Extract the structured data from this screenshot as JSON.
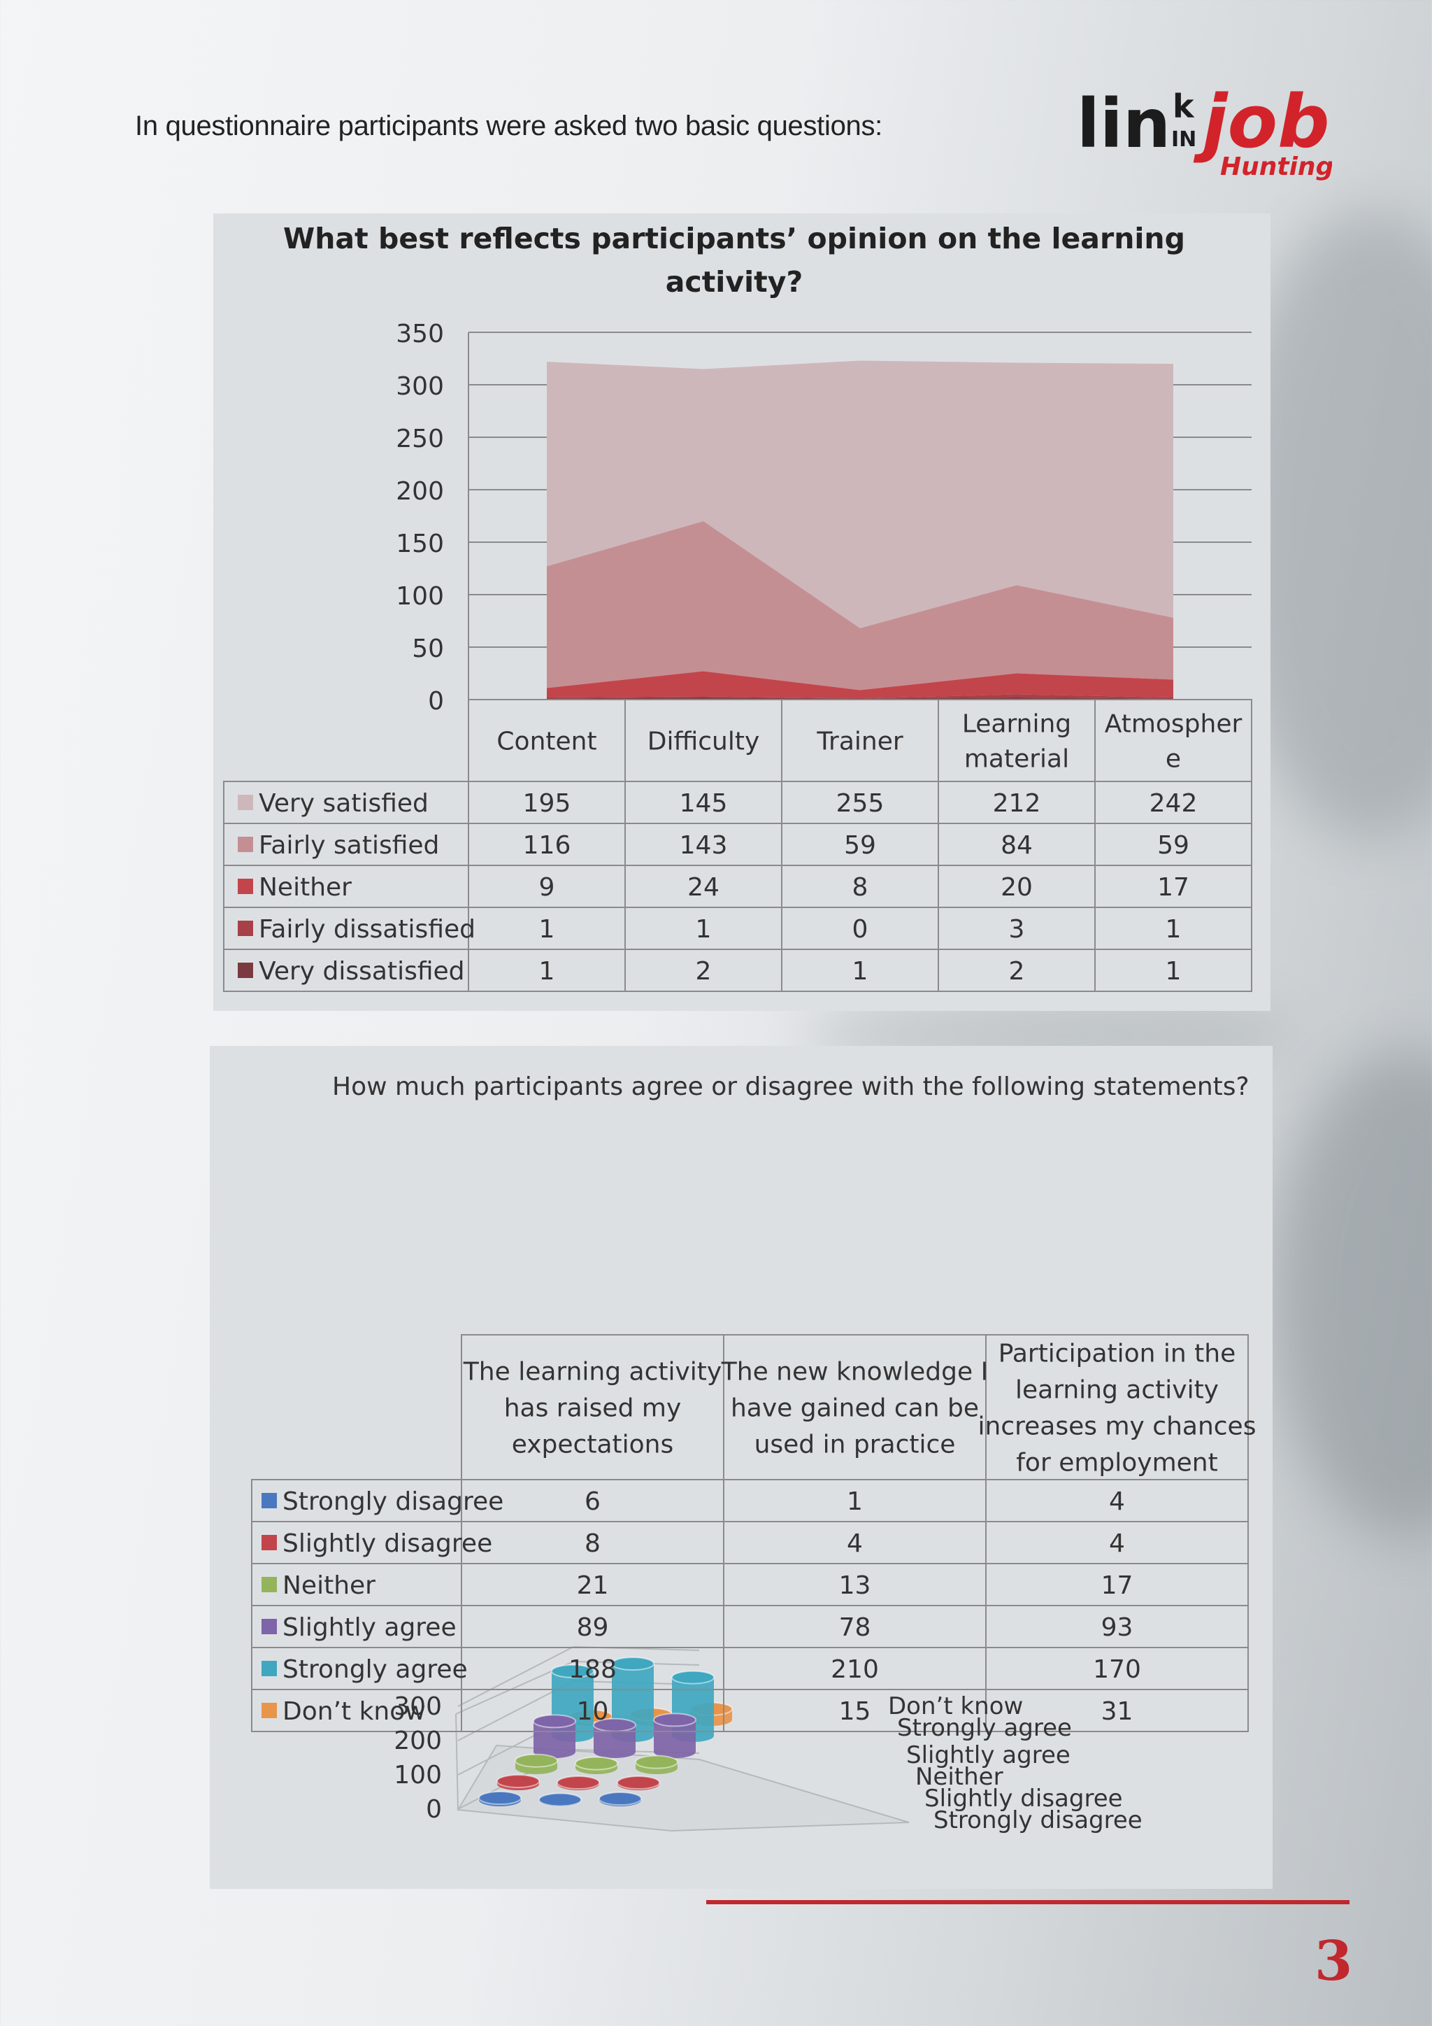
{
  "intro_text": "In questionnaire participants were asked two basic questions:",
  "logo": {
    "main1": "lin",
    "k": "k",
    "in": "IN",
    "job": "job",
    "sub": "Hunting"
  },
  "page_number": "3",
  "colors": {
    "accent": "#c0282d",
    "q1": [
      "#ceb7bb",
      "#c48f93",
      "#c2454b",
      "#a84048",
      "#7b3a3f"
    ],
    "q2": [
      "#4a78c0",
      "#c2454b",
      "#93b45a",
      "#7e64a8",
      "#3fa7c0",
      "#e8944a"
    ]
  },
  "chart_data": [
    {
      "type": "area",
      "stacked": true,
      "title": "What best reflects participants’ opinion on the learning activity?",
      "title_lines": [
        "What best reflects participants’ opinion on the learning",
        "activity?"
      ],
      "categories": [
        "Content",
        "Difficulty",
        "Trainer",
        "Learning material",
        "Atmosphere"
      ],
      "category_lines": [
        [
          "Content"
        ],
        [
          "Difficulty"
        ],
        [
          "Trainer"
        ],
        [
          "Learning",
          "material"
        ],
        [
          "Atmospher",
          "e"
        ]
      ],
      "ylim": [
        0,
        350
      ],
      "yticks": [
        "0",
        "50",
        "100",
        "150",
        "200",
        "250",
        "300",
        "350"
      ],
      "grid": true,
      "series": [
        {
          "name": "Very satisfied",
          "values": [
            195,
            145,
            255,
            212,
            242
          ]
        },
        {
          "name": "Fairly satisfied",
          "values": [
            116,
            143,
            59,
            84,
            59
          ]
        },
        {
          "name": "Neither",
          "values": [
            9,
            24,
            8,
            20,
            17
          ]
        },
        {
          "name": "Fairly dissatisfied",
          "values": [
            1,
            1,
            0,
            3,
            1
          ]
        },
        {
          "name": "Very dissatisfied",
          "values": [
            1,
            2,
            1,
            2,
            1
          ]
        }
      ]
    },
    {
      "type": "bar",
      "style": "3d-cylinder",
      "title": "How much participants agree or disagree with the following statements?",
      "categories": [
        "The learning activity has raised my expectations",
        "The new knowledge I have gained can be used in practice",
        "Participation in the learning activity increases my chances for employment"
      ],
      "category_lines": [
        [
          "The learning activity",
          "has raised my",
          "expectations"
        ],
        [
          "The new knowledge I",
          "have gained can be",
          "used in practice"
        ],
        [
          "Participation in the",
          "learning activity",
          "increases my chances",
          "for employment"
        ]
      ],
      "ylim": [
        0,
        300
      ],
      "yticks": [
        "0",
        "100",
        "200",
        "300"
      ],
      "series": [
        {
          "name": "Strongly disagree",
          "values": [
            6,
            1,
            4
          ]
        },
        {
          "name": "Slightly disagree",
          "values": [
            8,
            4,
            4
          ]
        },
        {
          "name": "Neither",
          "values": [
            21,
            13,
            17
          ]
        },
        {
          "name": "Slightly agree",
          "values": [
            89,
            78,
            93
          ]
        },
        {
          "name": "Strongly agree",
          "values": [
            188,
            210,
            170
          ]
        },
        {
          "name": "Don’t know",
          "values": [
            10,
            15,
            31
          ]
        }
      ]
    }
  ]
}
